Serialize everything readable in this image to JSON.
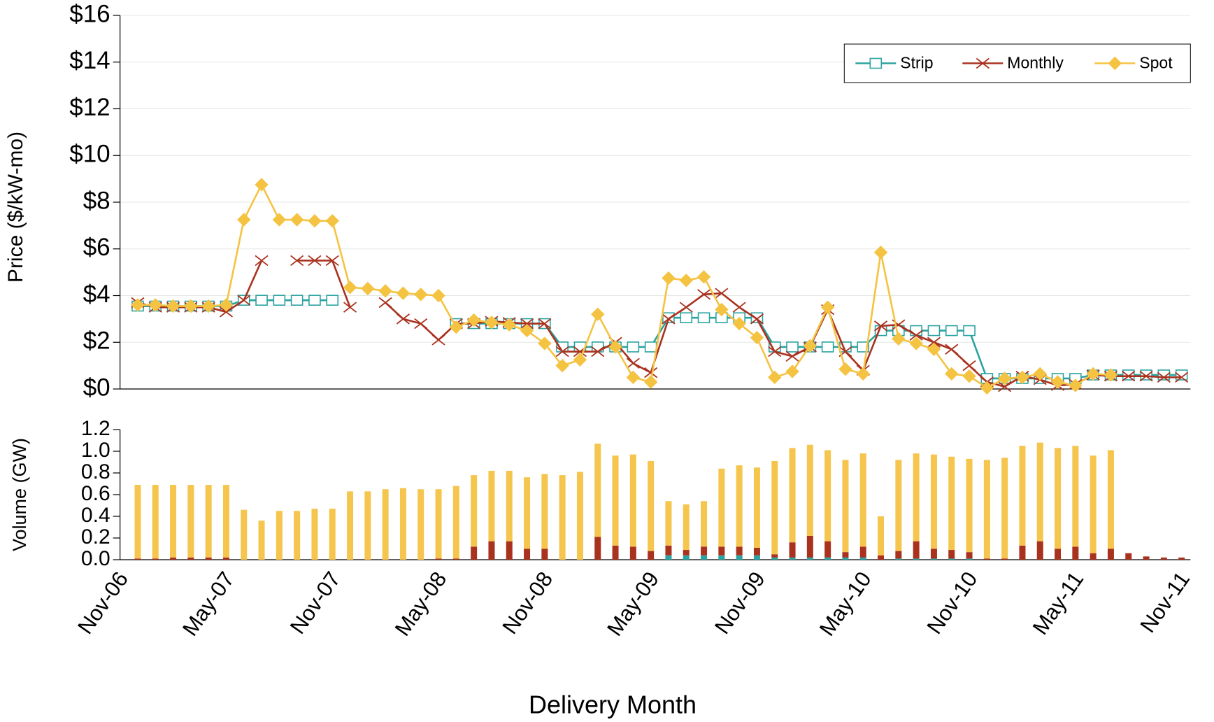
{
  "chart_data": [
    {
      "type": "line",
      "ylabel": "Price ($/kW-mo)",
      "ylim": [
        0,
        16
      ],
      "yticks": [
        {
          "value": 0,
          "label": "$0"
        },
        {
          "value": 2,
          "label": "$2"
        },
        {
          "value": 4,
          "label": "$4"
        },
        {
          "value": 6,
          "label": "$6"
        },
        {
          "value": 8,
          "label": "$8"
        },
        {
          "value": 10,
          "label": "$10"
        },
        {
          "value": 12,
          "label": "$12"
        },
        {
          "value": 14,
          "label": "$14"
        },
        {
          "value": 16,
          "label": "$16"
        }
      ],
      "grid": true,
      "legend": "upper right",
      "series": [
        {
          "name": "Strip",
          "color": "#2ba3a0",
          "marker": "square",
          "values": [
            null,
            3.55,
            3.55,
            3.55,
            3.55,
            3.55,
            3.55,
            3.8,
            3.8,
            3.8,
            3.8,
            3.8,
            3.8,
            null,
            null,
            null,
            null,
            null,
            null,
            2.8,
            2.8,
            2.8,
            2.8,
            2.8,
            2.8,
            1.8,
            1.8,
            1.8,
            1.8,
            1.8,
            1.8,
            3.05,
            3.05,
            3.05,
            3.05,
            3.05,
            3.05,
            1.8,
            1.8,
            1.8,
            1.8,
            1.8,
            1.8,
            2.5,
            2.5,
            2.5,
            2.5,
            2.5,
            2.5,
            0.45,
            0.45,
            0.45,
            0.45,
            0.45,
            0.45,
            0.6,
            0.6,
            0.6,
            0.6,
            0.6,
            0.6
          ]
        },
        {
          "name": "Monthly",
          "color": "#a9321f",
          "marker": "x",
          "values": [
            null,
            3.7,
            3.5,
            3.5,
            3.5,
            3.5,
            3.3,
            3.8,
            5.5,
            null,
            5.5,
            5.5,
            5.5,
            3.5,
            null,
            3.7,
            3.0,
            2.8,
            2.1,
            2.8,
            2.8,
            2.9,
            2.85,
            2.8,
            2.8,
            1.6,
            1.6,
            1.6,
            2.0,
            1.1,
            0.7,
            3.0,
            3.5,
            4.05,
            4.1,
            3.5,
            3.0,
            1.6,
            1.4,
            1.8,
            3.4,
            1.6,
            0.8,
            2.7,
            2.75,
            2.3,
            2.0,
            1.7,
            1.0,
            0.3,
            0.1,
            0.55,
            0.4,
            0.15,
            0.2,
            0.6,
            0.55,
            0.55,
            0.55,
            0.5,
            0.5
          ]
        },
        {
          "name": "Spot",
          "color": "#f5c342",
          "marker": "diamond",
          "values": [
            null,
            3.6,
            3.6,
            3.55,
            3.55,
            3.55,
            3.6,
            7.25,
            8.75,
            7.25,
            7.25,
            7.2,
            7.2,
            4.35,
            4.3,
            4.2,
            4.1,
            4.05,
            4.0,
            2.65,
            2.95,
            2.85,
            2.75,
            2.5,
            1.95,
            1.0,
            1.25,
            3.2,
            1.8,
            0.5,
            0.3,
            4.75,
            4.65,
            4.8,
            3.4,
            2.8,
            2.2,
            0.5,
            0.75,
            1.85,
            3.5,
            0.85,
            0.65,
            5.85,
            2.15,
            1.95,
            1.7,
            0.65,
            0.55,
            0.05,
            0.45,
            0.5,
            0.65,
            0.3,
            0.15,
            0.65,
            0.6,
            null,
            null,
            null,
            null
          ]
        }
      ]
    },
    {
      "type": "stacked_bar",
      "ylabel": "Volume (GW)",
      "xlabel": "Delivery Month",
      "ylim": [
        0,
        1.2
      ],
      "yticks": [
        {
          "value": 0,
          "label": "0.0"
        },
        0.2,
        0.4,
        0.6,
        0.8,
        {
          "value": 1,
          "label": "1.0"
        },
        1.2
      ],
      "grid": false,
      "categories": [
        "Nov-06",
        null,
        null,
        null,
        null,
        null,
        "May-07",
        null,
        null,
        null,
        null,
        null,
        "Nov-07",
        null,
        null,
        null,
        null,
        null,
        "May-08",
        null,
        null,
        null,
        null,
        null,
        "Nov-08",
        null,
        null,
        null,
        null,
        null,
        "May-09",
        null,
        null,
        null,
        null,
        null,
        "Nov-09",
        null,
        null,
        null,
        null,
        null,
        "May-10",
        null,
        null,
        null,
        null,
        null,
        "Nov-10",
        null,
        null,
        null,
        null,
        null,
        "May-11",
        null,
        null,
        null,
        null,
        null,
        "Nov-11"
      ],
      "series": [
        {
          "color": "#2ba3a0",
          "values": [
            null,
            null,
            null,
            null,
            null,
            null,
            null,
            null,
            null,
            null,
            null,
            null,
            null,
            null,
            null,
            null,
            null,
            null,
            null,
            null,
            null,
            null,
            null,
            null,
            null,
            null,
            null,
            null,
            null,
            null,
            null,
            0.04,
            0.04,
            0.04,
            0.04,
            0.04,
            0.04,
            0.02,
            0.02,
            0.02,
            0.02,
            0.02,
            0.02,
            null,
            0.01,
            0.01,
            0.01,
            0.01,
            0.01,
            null,
            null,
            null,
            null,
            null,
            null,
            null,
            null,
            null,
            null,
            null,
            null
          ]
        },
        {
          "color": "#a9321f",
          "values": [
            null,
            0.01,
            0.01,
            0.02,
            0.02,
            0.02,
            0.02,
            null,
            null,
            null,
            null,
            null,
            null,
            null,
            null,
            null,
            null,
            null,
            0.01,
            0.01,
            0.12,
            0.17,
            0.17,
            0.1,
            0.1,
            null,
            null,
            0.21,
            0.13,
            0.12,
            0.08,
            0.09,
            0.05,
            0.08,
            0.08,
            0.08,
            0.07,
            0.03,
            0.14,
            0.2,
            0.15,
            0.05,
            0.1,
            0.04,
            0.07,
            0.16,
            0.09,
            0.08,
            0.06,
            0.01,
            0.01,
            0.13,
            0.17,
            0.1,
            0.12,
            0.06,
            0.1,
            0.06,
            0.03,
            0.02,
            0.02
          ]
        },
        {
          "color": "#f5c54e",
          "values": [
            null,
            0.68,
            0.68,
            0.67,
            0.67,
            0.67,
            0.67,
            0.46,
            0.36,
            0.45,
            0.45,
            0.47,
            0.47,
            0.63,
            0.63,
            0.65,
            0.66,
            0.65,
            0.64,
            0.67,
            0.66,
            0.65,
            0.65,
            0.66,
            0.69,
            0.78,
            0.81,
            0.86,
            0.83,
            0.85,
            0.83,
            0.41,
            0.42,
            0.42,
            0.72,
            0.75,
            0.74,
            0.86,
            0.87,
            0.84,
            0.84,
            0.85,
            0.86,
            0.36,
            0.84,
            0.81,
            0.87,
            0.86,
            0.86,
            0.91,
            0.93,
            0.92,
            0.91,
            0.93,
            0.93,
            0.9,
            0.91,
            null,
            null,
            null,
            null
          ]
        }
      ]
    }
  ]
}
